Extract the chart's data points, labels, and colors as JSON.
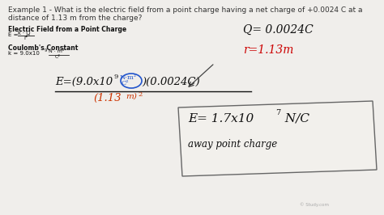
{
  "bg_color": "#f0eeeb",
  "title_line1": "Example 1 - What is the electric field from a point charge having a net charge of +0.0024 C at a",
  "title_line2": "distance of 1.13 m from the charge?",
  "title_fontsize": 6.5,
  "title_color": "#333333",
  "ef_bold": "Electric Field from a Point Charge",
  "ef_fontsize": 5.5,
  "coulomb_bold": "Coulomb's Constant",
  "coulomb_fontsize": 5.5,
  "q_text": "Q= 0.0024C",
  "q_color": "#111111",
  "q_fontsize": 10,
  "r_text": "r=1.13m",
  "r_color": "#cc0000",
  "r_fontsize": 10,
  "main_eq_fontsize": 9.5,
  "denom_color": "#cc3300",
  "blue_color": "#2255cc",
  "result_box_color": "#f2f0ec",
  "result_box_edge": "#666666",
  "watermark": "© Study.com",
  "watermark_color": "#aaaaaa"
}
